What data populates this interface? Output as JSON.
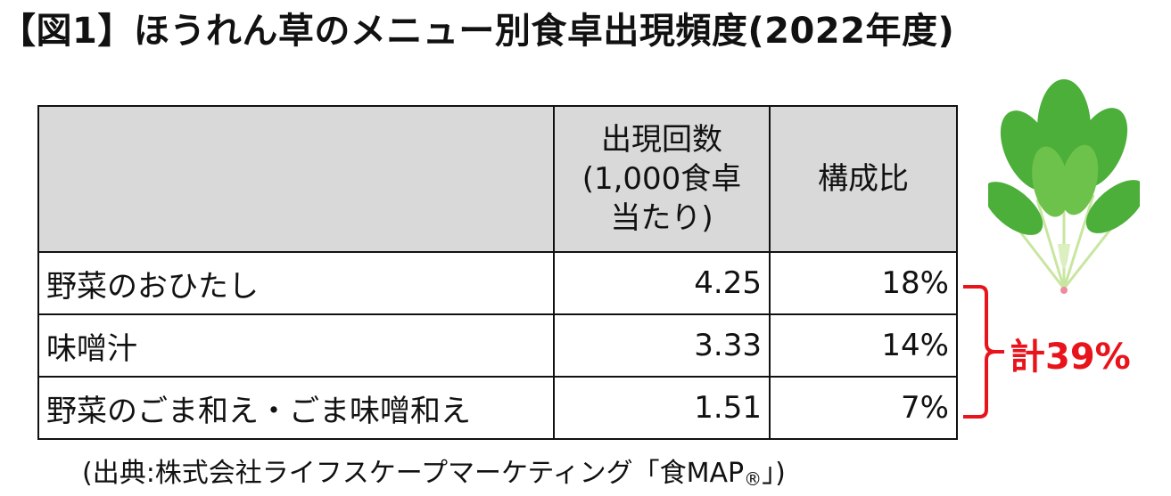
{
  "title": "【図1】ほうれん草のメニュー別食卓出現頻度(2022年度)",
  "table": {
    "columns": {
      "count": [
        "出現回数",
        "(1,000食卓",
        "当たり)"
      ],
      "share": "構成比"
    },
    "rows": [
      [
        "野菜のおひたし",
        4.25,
        "18%"
      ],
      [
        "味噌汁",
        3.33,
        "14%"
      ],
      [
        "野菜のごま和え・ごま味噌和え",
        1.51,
        "7%"
      ]
    ]
  },
  "total": "計39%",
  "source": {
    "text": "(出典:株式会社ライフスケープマーケティング「食MAP",
    "mark": "®",
    "close": "」)"
  }
}
